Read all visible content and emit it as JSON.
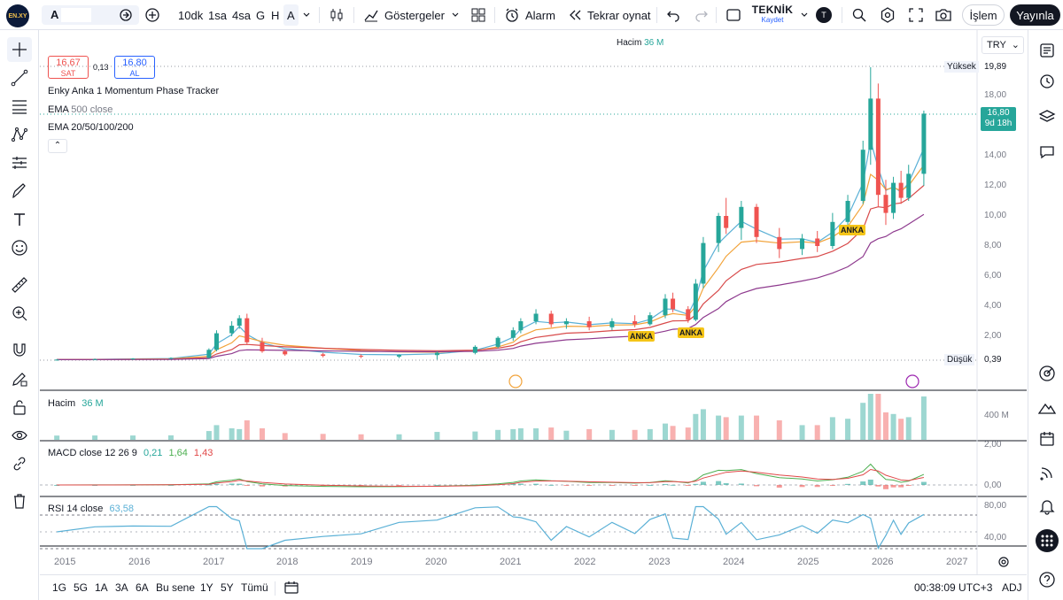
{
  "toolbar": {
    "symbol": "A",
    "intervals": [
      "10dk",
      "1sa",
      "4sa",
      "G",
      "H",
      "A"
    ],
    "indicators_label": "Göstergeler",
    "alarm_label": "Alarm",
    "replay_label": "Tekrar oynat",
    "layout_name": "TEKNİK",
    "layout_status": "Kaydet",
    "avatar_letter": "T",
    "trade_label": "İşlem",
    "publish_label": "Yayınla"
  },
  "legend": {
    "sell_price": "16,67",
    "sell_label": "SAT",
    "spread": "0,13",
    "buy_price": "16,80",
    "buy_label": "AL",
    "indicator1": "Enky Anka 1 Momentum Phase Tracker",
    "ema500_name": "EMA",
    "ema500_params": "500 close",
    "ema_multi": "EMA 20/50/100/200",
    "volume_top_label": "Hacim",
    "volume_top_value": "36 M"
  },
  "price_axis": {
    "currency": "TRY",
    "high_label": "Yüksek",
    "high_value": "19,89",
    "low_label": "Düşük",
    "low_value": "0,39",
    "current_price": "16,80",
    "countdown": "9d 18h",
    "ticks": [
      "18,00",
      "14,00",
      "12,00",
      "10,00",
      "8,00",
      "6,00",
      "4,00",
      "2,00"
    ]
  },
  "signals": [
    "ANKA",
    "ANKA",
    "ANKA"
  ],
  "volume_pane": {
    "label": "Hacim",
    "value": "36 M",
    "tick": "400 M"
  },
  "macd_pane": {
    "label": "MACD",
    "params": "close 12 26 9",
    "v1": "0,21",
    "v2": "1,64",
    "v3": "1,43",
    "tick_top": "2,00",
    "tick_zero": "0,00"
  },
  "rsi_pane": {
    "label": "RSI",
    "params": "14 close",
    "value": "63,58",
    "tick_top": "80,00",
    "tick_bottom": "40,00"
  },
  "time_axis": [
    "2015",
    "2016",
    "2017",
    "2018",
    "2019",
    "2020",
    "2021",
    "2022",
    "2023",
    "2024",
    "2025",
    "2026",
    "2027"
  ],
  "bottom": {
    "ranges": [
      "1G",
      "5G",
      "1A",
      "3A",
      "6A",
      "Bu sene",
      "1Y",
      "5Y",
      "Tümü"
    ],
    "clock": "00:38:09 UTC+3",
    "adj": "ADJ"
  },
  "colors": {
    "up": "#26a69a",
    "down": "#ef5350",
    "ema20": "#5ab0d6",
    "ema50": "#f2a33a",
    "ema100": "#d84a4a",
    "ema200": "#8e3a8e",
    "macd": "#4caf50",
    "signal": "#e04848",
    "rsi": "#5ab0d6"
  },
  "chart_data": {
    "type": "candlestick",
    "series": [
      {
        "name": "price",
        "points": [
          {
            "x": 2015.0,
            "o": 0.42,
            "h": 0.48,
            "l": 0.39,
            "c": 0.45
          },
          {
            "x": 2015.5,
            "o": 0.45,
            "h": 0.52,
            "l": 0.42,
            "c": 0.48
          },
          {
            "x": 2016.0,
            "o": 0.48,
            "h": 0.55,
            "l": 0.45,
            "c": 0.52
          },
          {
            "x": 2016.5,
            "o": 0.52,
            "h": 0.6,
            "l": 0.48,
            "c": 0.56
          },
          {
            "x": 2017.0,
            "o": 0.56,
            "h": 1.2,
            "l": 0.54,
            "c": 1.1
          },
          {
            "x": 2017.1,
            "o": 1.1,
            "h": 2.4,
            "l": 1.0,
            "c": 2.2
          },
          {
            "x": 2017.3,
            "o": 2.2,
            "h": 3.0,
            "l": 2.0,
            "c": 2.7
          },
          {
            "x": 2017.4,
            "o": 2.7,
            "h": 3.4,
            "l": 2.5,
            "c": 3.2
          },
          {
            "x": 2017.5,
            "o": 3.2,
            "h": 3.5,
            "l": 1.5,
            "c": 1.6
          },
          {
            "x": 2017.7,
            "o": 1.6,
            "h": 1.9,
            "l": 0.9,
            "c": 1.0
          },
          {
            "x": 2018.0,
            "o": 1.0,
            "h": 1.1,
            "l": 0.7,
            "c": 0.8
          },
          {
            "x": 2018.5,
            "o": 0.8,
            "h": 0.9,
            "l": 0.6,
            "c": 0.7
          },
          {
            "x": 2019.0,
            "o": 0.7,
            "h": 0.8,
            "l": 0.55,
            "c": 0.65
          },
          {
            "x": 2019.5,
            "o": 0.65,
            "h": 0.8,
            "l": 0.55,
            "c": 0.75
          },
          {
            "x": 2020.0,
            "o": 0.75,
            "h": 1.0,
            "l": 0.45,
            "c": 0.9
          },
          {
            "x": 2020.5,
            "o": 0.9,
            "h": 1.4,
            "l": 0.8,
            "c": 1.3
          },
          {
            "x": 2020.8,
            "o": 1.3,
            "h": 2.0,
            "l": 1.2,
            "c": 1.9
          },
          {
            "x": 2021.0,
            "o": 1.9,
            "h": 2.6,
            "l": 1.7,
            "c": 2.4
          },
          {
            "x": 2021.1,
            "o": 2.4,
            "h": 3.2,
            "l": 2.2,
            "c": 3.0
          },
          {
            "x": 2021.3,
            "o": 3.0,
            "h": 3.8,
            "l": 2.8,
            "c": 3.5
          },
          {
            "x": 2021.5,
            "o": 3.5,
            "h": 3.7,
            "l": 2.6,
            "c": 2.8
          },
          {
            "x": 2021.7,
            "o": 2.8,
            "h": 3.2,
            "l": 2.5,
            "c": 3.0
          },
          {
            "x": 2022.0,
            "o": 3.0,
            "h": 3.3,
            "l": 2.4,
            "c": 2.6
          },
          {
            "x": 2022.3,
            "o": 2.6,
            "h": 3.2,
            "l": 2.4,
            "c": 3.0
          },
          {
            "x": 2022.6,
            "o": 3.0,
            "h": 3.4,
            "l": 2.6,
            "c": 2.8
          },
          {
            "x": 2022.8,
            "o": 2.8,
            "h": 3.6,
            "l": 2.7,
            "c": 3.4
          },
          {
            "x": 2023.0,
            "o": 3.4,
            "h": 4.8,
            "l": 3.2,
            "c": 4.5
          },
          {
            "x": 2023.1,
            "o": 4.5,
            "h": 4.9,
            "l": 3.6,
            "c": 3.8
          },
          {
            "x": 2023.3,
            "o": 3.8,
            "h": 4.0,
            "l": 2.9,
            "c": 3.1
          },
          {
            "x": 2023.4,
            "o": 3.1,
            "h": 5.8,
            "l": 3.0,
            "c": 5.5
          },
          {
            "x": 2023.5,
            "o": 5.5,
            "h": 8.6,
            "l": 5.2,
            "c": 8.2
          },
          {
            "x": 2023.7,
            "o": 8.2,
            "h": 10.2,
            "l": 7.6,
            "c": 10.0
          },
          {
            "x": 2023.8,
            "o": 10.0,
            "h": 11.2,
            "l": 8.8,
            "c": 9.2
          },
          {
            "x": 2024.0,
            "o": 9.2,
            "h": 11.0,
            "l": 8.4,
            "c": 10.6
          },
          {
            "x": 2024.2,
            "o": 10.6,
            "h": 10.8,
            "l": 8.2,
            "c": 8.6
          },
          {
            "x": 2024.5,
            "o": 8.6,
            "h": 9.2,
            "l": 7.2,
            "c": 7.8
          },
          {
            "x": 2024.8,
            "o": 7.8,
            "h": 8.8,
            "l": 7.4,
            "c": 8.5
          },
          {
            "x": 2025.0,
            "o": 8.5,
            "h": 9.0,
            "l": 7.6,
            "c": 8.0
          },
          {
            "x": 2025.2,
            "o": 8.0,
            "h": 10.2,
            "l": 7.8,
            "c": 9.6
          },
          {
            "x": 2025.4,
            "o": 9.6,
            "h": 11.4,
            "l": 9.2,
            "c": 11.0
          },
          {
            "x": 2025.6,
            "o": 11.0,
            "h": 15.0,
            "l": 10.8,
            "c": 14.4
          },
          {
            "x": 2025.7,
            "o": 14.4,
            "h": 19.89,
            "l": 13.4,
            "c": 17.8
          },
          {
            "x": 2025.8,
            "o": 17.8,
            "h": 18.8,
            "l": 10.6,
            "c": 11.4
          },
          {
            "x": 2025.9,
            "o": 11.4,
            "h": 12.4,
            "l": 9.4,
            "c": 10.2
          },
          {
            "x": 2026.0,
            "o": 10.2,
            "h": 12.6,
            "l": 9.8,
            "c": 12.2
          },
          {
            "x": 2026.1,
            "o": 12.2,
            "h": 13.0,
            "l": 10.8,
            "c": 11.2
          },
          {
            "x": 2026.2,
            "o": 11.2,
            "h": 13.4,
            "l": 11.0,
            "c": 12.8
          },
          {
            "x": 2026.4,
            "o": 12.8,
            "h": 17.0,
            "l": 12.0,
            "c": 16.8
          }
        ]
      }
    ],
    "xlim": [
      2014.8,
      2027.1
    ],
    "ylim": [
      0.0,
      21.0
    ],
    "xlabel": "",
    "ylabel": ""
  }
}
